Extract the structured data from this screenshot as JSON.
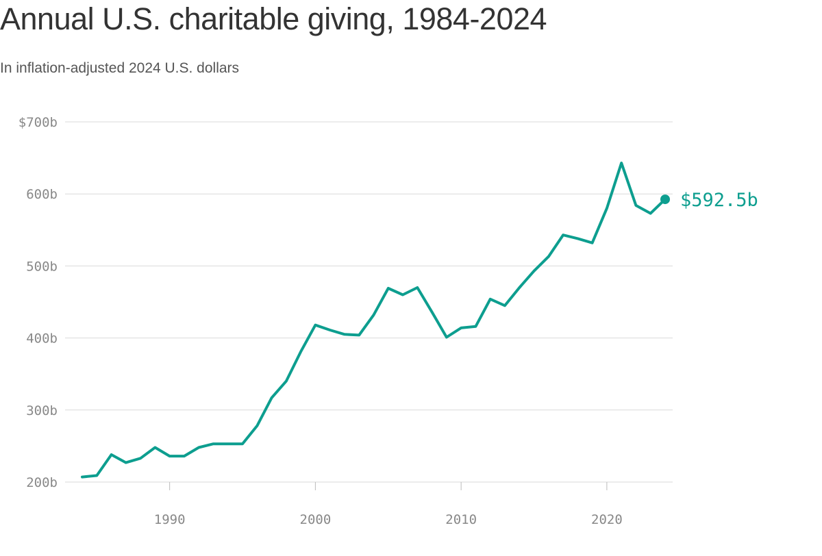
{
  "header": {
    "title": "Annual U.S. charitable giving, 1984-2024",
    "subtitle": "In inflation-adjusted 2024 U.S. dollars"
  },
  "chart_data": {
    "type": "line",
    "title": "Annual U.S. charitable giving, 1984-2024",
    "subtitle": "In inflation-adjusted 2024 U.S. dollars",
    "xlabel": "",
    "ylabel": "",
    "xlim": [
      1984,
      2024
    ],
    "ylim": [
      200,
      700
    ],
    "grid": true,
    "y_ticks": [
      {
        "value": 200,
        "label": "200b"
      },
      {
        "value": 300,
        "label": "300b"
      },
      {
        "value": 400,
        "label": "400b"
      },
      {
        "value": 500,
        "label": "500b"
      },
      {
        "value": 600,
        "label": "600b"
      },
      {
        "value": 700,
        "label": "$700b"
      }
    ],
    "x_ticks": [
      {
        "value": 1990,
        "label": "1990"
      },
      {
        "value": 2000,
        "label": "2000"
      },
      {
        "value": 2010,
        "label": "2010"
      },
      {
        "value": 2020,
        "label": "2020"
      }
    ],
    "x": [
      1984,
      1985,
      1986,
      1987,
      1988,
      1989,
      1990,
      1991,
      1992,
      1993,
      1994,
      1995,
      1996,
      1997,
      1998,
      1999,
      2000,
      2001,
      2002,
      2003,
      2004,
      2005,
      2006,
      2007,
      2008,
      2009,
      2010,
      2011,
      2012,
      2013,
      2014,
      2015,
      2016,
      2017,
      2018,
      2019,
      2020,
      2021,
      2022,
      2023,
      2024
    ],
    "series": [
      {
        "values": [
          207,
          209,
          238,
          227,
          233,
          248,
          236,
          236,
          248,
          253,
          253,
          253,
          278,
          317,
          340,
          381,
          418,
          411,
          405,
          404,
          432,
          469,
          460,
          470,
          436,
          401,
          414,
          416,
          454,
          445,
          470,
          493,
          513,
          543,
          538,
          532,
          580,
          643,
          584,
          573,
          592.5
        ],
        "color": "#0d9e8f"
      }
    ],
    "end_label": "$592.5b",
    "colors": {
      "line": "#0d9e8f",
      "grid": "#d9d9d9",
      "tick_text": "#888888"
    }
  }
}
